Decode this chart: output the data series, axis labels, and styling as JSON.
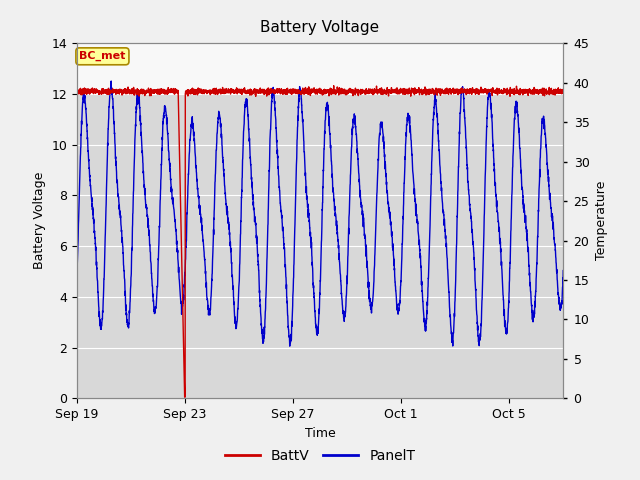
{
  "title": "Battery Voltage",
  "xlabel": "Time",
  "ylabel_left": "Battery Voltage",
  "ylabel_right": "Temperature",
  "ylim_left": [
    0,
    14
  ],
  "ylim_right": [
    0,
    45
  ],
  "yticks_left": [
    0,
    2,
    4,
    6,
    8,
    10,
    12,
    14
  ],
  "yticks_right": [
    0,
    5,
    10,
    15,
    20,
    25,
    30,
    35,
    40,
    45
  ],
  "fig_bg_color": "#f0f0f0",
  "plot_bg_color": "#d8d8d8",
  "upper_bg_color": "#f8f8f8",
  "grid_color": "#ffffff",
  "legend_labels": [
    "BattV",
    "PanelT"
  ],
  "legend_colors": [
    "#cc0000",
    "#0000cc"
  ],
  "bc_met_label": "BC_met",
  "bc_met_bg": "#ffff99",
  "bc_met_border": "#aa8800",
  "bc_met_text_color": "#cc0000",
  "xtick_positions": [
    0,
    4,
    8,
    12,
    16
  ],
  "xtick_labels": [
    "Sep 19",
    "Sep 23",
    "Sep 27",
    "Oct 1",
    "Oct 5"
  ],
  "t_total": 18.0,
  "xlim": [
    0,
    18.0
  ],
  "batt_level": 12.1,
  "batt_noise": 0.06,
  "drop_start_day": 3.75,
  "drop_end_day": 4.0,
  "panel_mid": 7.3,
  "panel_amp": 3.9,
  "panel_period": 1.0
}
